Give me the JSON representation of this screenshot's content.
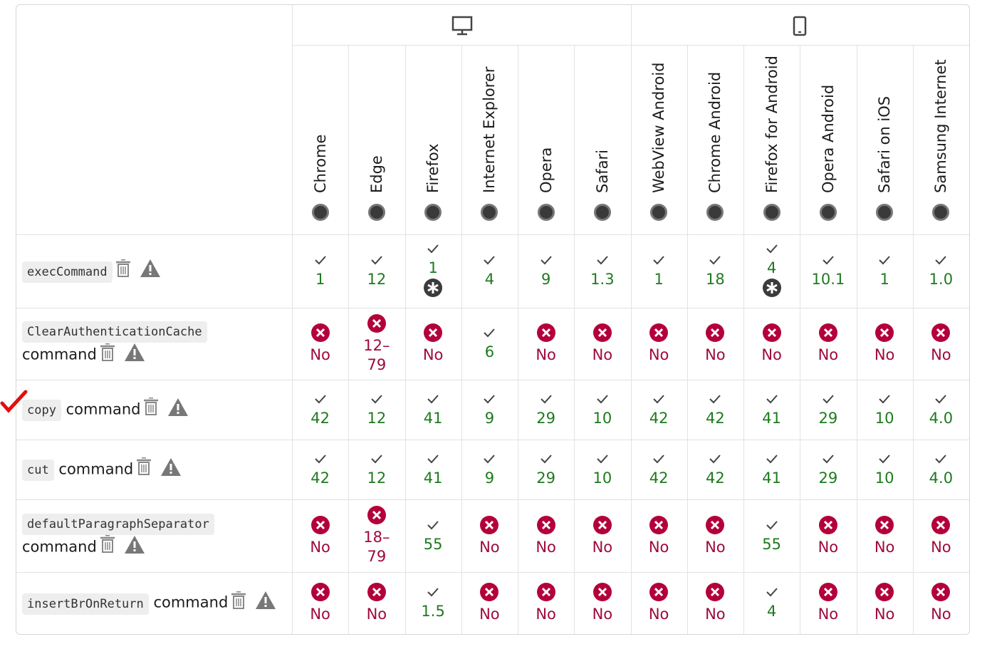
{
  "browsers": [
    "Chrome",
    "Edge",
    "Firefox",
    "Internet Explorer",
    "Opera",
    "Safari",
    "WebView Android",
    "Chrome Android",
    "Firefox for Android",
    "Opera Android",
    "Safari on iOS",
    "Samsung Internet"
  ],
  "rows": [
    {
      "code": "execCommand",
      "cells": [
        {
          "supported": true,
          "label": "1"
        },
        {
          "supported": true,
          "label": "12"
        },
        {
          "supported": true,
          "label": "1",
          "note": true
        },
        {
          "supported": true,
          "label": "4"
        },
        {
          "supported": true,
          "label": "9"
        },
        {
          "supported": true,
          "label": "1.3"
        },
        {
          "supported": true,
          "label": "1"
        },
        {
          "supported": true,
          "label": "18"
        },
        {
          "supported": true,
          "label": "4",
          "note": true
        },
        {
          "supported": true,
          "label": "10.1"
        },
        {
          "supported": true,
          "label": "1"
        },
        {
          "supported": true,
          "label": "1.0"
        }
      ]
    },
    {
      "code": "ClearAuthenticationCache",
      "text": "command",
      "cells": [
        {
          "supported": false,
          "label": "No"
        },
        {
          "supported": false,
          "label": "12–79"
        },
        {
          "supported": false,
          "label": "No"
        },
        {
          "supported": true,
          "label": "6"
        },
        {
          "supported": false,
          "label": "No"
        },
        {
          "supported": false,
          "label": "No"
        },
        {
          "supported": false,
          "label": "No"
        },
        {
          "supported": false,
          "label": "No"
        },
        {
          "supported": false,
          "label": "No"
        },
        {
          "supported": false,
          "label": "No"
        },
        {
          "supported": false,
          "label": "No"
        },
        {
          "supported": false,
          "label": "No"
        }
      ]
    },
    {
      "code": "copy",
      "text": "command",
      "cells": [
        {
          "supported": true,
          "label": "42"
        },
        {
          "supported": true,
          "label": "12"
        },
        {
          "supported": true,
          "label": "41"
        },
        {
          "supported": true,
          "label": "9"
        },
        {
          "supported": true,
          "label": "29"
        },
        {
          "supported": true,
          "label": "10"
        },
        {
          "supported": true,
          "label": "42"
        },
        {
          "supported": true,
          "label": "42"
        },
        {
          "supported": true,
          "label": "41"
        },
        {
          "supported": true,
          "label": "29"
        },
        {
          "supported": true,
          "label": "10"
        },
        {
          "supported": true,
          "label": "4.0"
        }
      ]
    },
    {
      "code": "cut",
      "text": "command",
      "cells": [
        {
          "supported": true,
          "label": "42"
        },
        {
          "supported": true,
          "label": "12"
        },
        {
          "supported": true,
          "label": "41"
        },
        {
          "supported": true,
          "label": "9"
        },
        {
          "supported": true,
          "label": "29"
        },
        {
          "supported": true,
          "label": "10"
        },
        {
          "supported": true,
          "label": "42"
        },
        {
          "supported": true,
          "label": "42"
        },
        {
          "supported": true,
          "label": "41"
        },
        {
          "supported": true,
          "label": "29"
        },
        {
          "supported": true,
          "label": "10"
        },
        {
          "supported": true,
          "label": "4.0"
        }
      ]
    },
    {
      "code": "defaultParagraphSeparator",
      "text": "command",
      "cells": [
        {
          "supported": false,
          "label": "No"
        },
        {
          "supported": false,
          "label": "18–79"
        },
        {
          "supported": true,
          "label": "55"
        },
        {
          "supported": false,
          "label": "No"
        },
        {
          "supported": false,
          "label": "No"
        },
        {
          "supported": false,
          "label": "No"
        },
        {
          "supported": false,
          "label": "No"
        },
        {
          "supported": false,
          "label": "No"
        },
        {
          "supported": true,
          "label": "55"
        },
        {
          "supported": false,
          "label": "No"
        },
        {
          "supported": false,
          "label": "No"
        },
        {
          "supported": false,
          "label": "No"
        }
      ]
    },
    {
      "code": "insertBrOnReturn",
      "text": "command",
      "cells": [
        {
          "supported": false,
          "label": "No"
        },
        {
          "supported": false,
          "label": "No"
        },
        {
          "supported": true,
          "label": "1.5"
        },
        {
          "supported": false,
          "label": "No"
        },
        {
          "supported": false,
          "label": "No"
        },
        {
          "supported": false,
          "label": "No"
        },
        {
          "supported": false,
          "label": "No"
        },
        {
          "supported": false,
          "label": "No"
        },
        {
          "supported": true,
          "label": "4"
        },
        {
          "supported": false,
          "label": "No"
        },
        {
          "supported": false,
          "label": "No"
        },
        {
          "supported": false,
          "label": "No"
        }
      ]
    }
  ]
}
